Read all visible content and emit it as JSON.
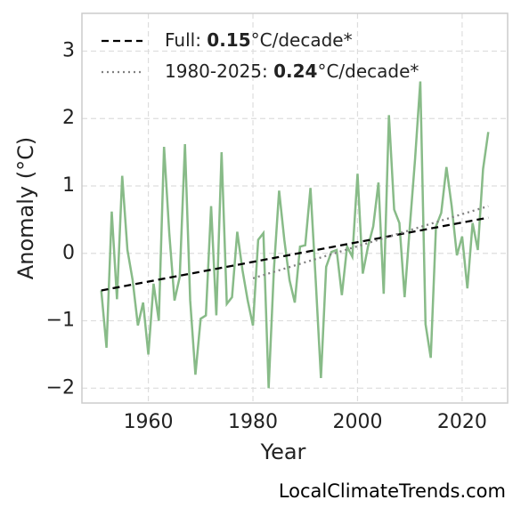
{
  "chart_data": {
    "type": "line",
    "xlabel": "Year",
    "ylabel": "Anomaly (°C)",
    "watermark": "LocalClimateTrends.com",
    "xlim": [
      1947.3,
      2028.7
    ],
    "ylim": [
      -2.22,
      3.56
    ],
    "xticks": [
      1960,
      1980,
      2000,
      2020
    ],
    "yticks": [
      {
        "value": -2,
        "label": "−2"
      },
      {
        "value": -1,
        "label": "−1"
      },
      0,
      1,
      2,
      3
    ],
    "grid": true,
    "legend": "upper left",
    "series": [
      {
        "color": "#88bb88",
        "style": "solid",
        "x": [
          1951,
          1952,
          1953,
          1954,
          1955,
          1956,
          1957,
          1958,
          1959,
          1960,
          1961,
          1962,
          1963,
          1964,
          1965,
          1966,
          1967,
          1968,
          1969,
          1970,
          1971,
          1972,
          1973,
          1974,
          1975,
          1976,
          1977,
          1978,
          1979,
          1980,
          1981,
          1982,
          1983,
          1984,
          1985,
          1986,
          1987,
          1988,
          1989,
          1990,
          1991,
          1992,
          1993,
          1994,
          1995,
          1996,
          1997,
          1998,
          1999,
          2000,
          2001,
          2002,
          2003,
          2004,
          2005,
          2006,
          2007,
          2008,
          2009,
          2010,
          2011,
          2012,
          2013,
          2014,
          2015,
          2016,
          2017,
          2018,
          2019,
          2020,
          2021,
          2022,
          2023,
          2024,
          2025
        ],
        "values": [
          -0.55,
          -1.4,
          0.62,
          -0.68,
          1.15,
          0.05,
          -0.4,
          -1.07,
          -0.73,
          -1.5,
          -0.45,
          -1.0,
          1.58,
          0.3,
          -0.7,
          -0.35,
          1.62,
          -0.7,
          -1.8,
          -0.97,
          -0.92,
          0.7,
          -0.92,
          1.5,
          -0.75,
          -0.65,
          0.32,
          -0.25,
          -0.7,
          -1.07,
          0.2,
          0.3,
          -2.0,
          -0.25,
          0.93,
          0.2,
          -0.4,
          -0.73,
          0.1,
          0.12,
          0.97,
          -0.4,
          -1.85,
          -0.2,
          0.02,
          0.05,
          -0.62,
          0.1,
          -0.05,
          1.18,
          -0.3,
          0.1,
          0.4,
          1.05,
          -0.6,
          2.05,
          0.65,
          0.45,
          -0.65,
          0.4,
          1.4,
          2.55,
          -1.05,
          -1.55,
          0.4,
          0.6,
          1.28,
          0.7,
          -0.03,
          0.25,
          -0.52,
          0.45,
          0.05,
          1.25,
          1.8
        ]
      },
      {
        "name": "Full: 0.15°C/decade*",
        "color": "#000000",
        "style": "dashed",
        "x": [
          1951,
          2025
        ],
        "values": [
          -0.55,
          0.53
        ]
      },
      {
        "name": "1980-2025: 0.24°C/decade*",
        "color": "#808080",
        "style": "dotted",
        "x": [
          1980,
          2025
        ],
        "values": [
          -0.37,
          0.7
        ]
      }
    ]
  }
}
